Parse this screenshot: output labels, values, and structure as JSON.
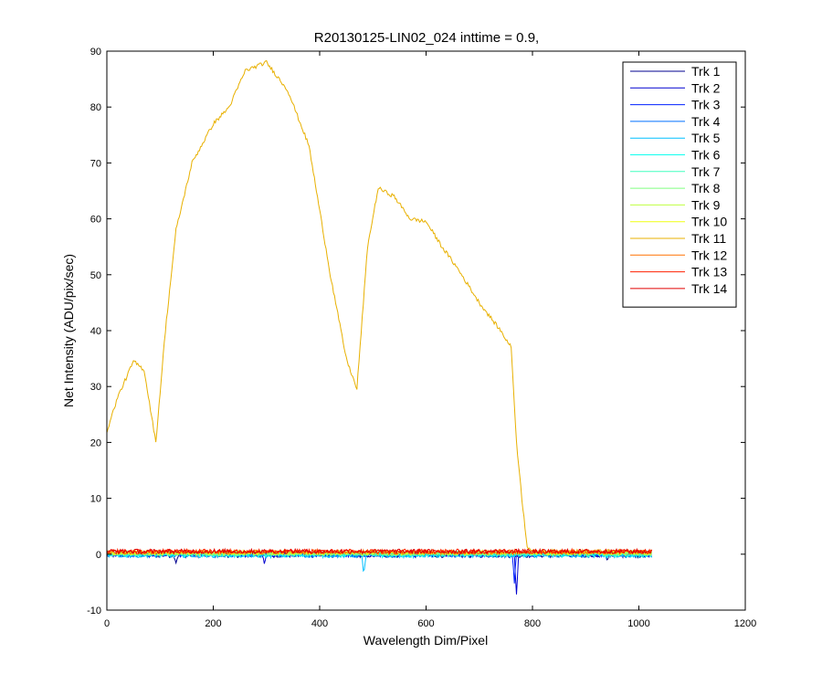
{
  "chart_data": {
    "type": "line",
    "title": "R20130125-LIN02_024 inttime = 0.9,",
    "xlabel": "Wavelength Dim/Pixel",
    "ylabel": "Net Intensity (ADU/pix/sec)",
    "xlim": [
      0,
      1200
    ],
    "ylim": [
      -10,
      90
    ],
    "xticks": [
      0,
      200,
      400,
      600,
      800,
      1000,
      1200
    ],
    "yticks": [
      -10,
      0,
      10,
      20,
      30,
      40,
      50,
      60,
      70,
      80,
      90
    ],
    "grid": false,
    "legend_position": "top-right",
    "series": [
      {
        "name": "Trk 1",
        "color": "#00008f",
        "x": [
          0,
          1024
        ],
        "y": [
          0,
          0
        ],
        "noise": 0.4,
        "offset": -0.2,
        "spikes": [
          [
            130,
            -1.2
          ],
          [
            940,
            -1.0
          ]
        ]
      },
      {
        "name": "Trk 2",
        "color": "#0000cf",
        "x": [
          0,
          1024
        ],
        "y": [
          0,
          0
        ],
        "noise": 0.4,
        "offset": -0.1,
        "spikes": [
          [
            770,
            -7.5
          ],
          [
            296,
            -1.8
          ]
        ]
      },
      {
        "name": "Trk 3",
        "color": "#0020ff",
        "x": [
          0,
          1024
        ],
        "y": [
          0,
          0
        ],
        "noise": 0.4,
        "offset": 0.0,
        "spikes": [
          [
            766,
            -5.0
          ]
        ]
      },
      {
        "name": "Trk 4",
        "color": "#0070ff",
        "x": [
          0,
          1024
        ],
        "y": [
          0,
          0
        ],
        "noise": 0.4,
        "offset": 0.0,
        "spikes": []
      },
      {
        "name": "Trk 5",
        "color": "#00bfff",
        "x": [
          0,
          1024
        ],
        "y": [
          0,
          0
        ],
        "noise": 0.4,
        "offset": -0.2,
        "spikes": [
          [
            483,
            -3.3
          ]
        ]
      },
      {
        "name": "Trk 6",
        "color": "#10ffef",
        "x": [
          0,
          1024
        ],
        "y": [
          0,
          0
        ],
        "noise": 0.4,
        "offset": -0.1,
        "spikes": []
      },
      {
        "name": "Trk 7",
        "color": "#40ffbf",
        "x": [
          0,
          1024
        ],
        "y": [
          0,
          0
        ],
        "noise": 0.4,
        "offset": 0.1,
        "spikes": []
      },
      {
        "name": "Trk 8",
        "color": "#80ff80",
        "x": [
          0,
          1024
        ],
        "y": [
          0,
          0
        ],
        "noise": 0.4,
        "offset": 0.2,
        "spikes": []
      },
      {
        "name": "Trk 9",
        "color": "#bfff40",
        "x": [
          0,
          1024
        ],
        "y": [
          0,
          0
        ],
        "noise": 0.4,
        "offset": 0.2,
        "spikes": []
      },
      {
        "name": "Trk 10",
        "color": "#efff10",
        "x": [
          0,
          1024
        ],
        "y": [
          0,
          0
        ],
        "noise": 0.4,
        "offset": 0.3,
        "spikes": []
      },
      {
        "name": "Trk 11",
        "color": "#e8b000",
        "x": [
          0,
          20,
          50,
          70,
          92,
          110,
          130,
          160,
          200,
          230,
          260,
          300,
          340,
          380,
          420,
          450,
          470,
          490,
          510,
          540,
          570,
          600,
          630,
          660,
          700,
          740,
          760,
          770,
          780,
          790,
          800,
          820,
          900,
          1024
        ],
        "y": [
          22,
          28,
          34.5,
          33,
          20,
          40,
          58,
          70,
          77,
          80,
          86.5,
          88,
          83,
          73,
          50,
          35,
          29.5,
          55,
          65.5,
          64,
          60,
          59.5,
          55,
          51,
          45,
          40,
          37,
          20,
          10,
          1.5,
          0.5,
          0.5,
          0.5,
          0.5
        ],
        "noise": 0.35,
        "offset": 0.0,
        "spikes": []
      },
      {
        "name": "Trk 12",
        "color": "#ff7000",
        "x": [
          0,
          1024
        ],
        "y": [
          0,
          0
        ],
        "noise": 0.4,
        "offset": 0.4,
        "spikes": []
      },
      {
        "name": "Trk 13",
        "color": "#ff2000",
        "x": [
          0,
          1024
        ],
        "y": [
          0,
          0
        ],
        "noise": 0.4,
        "offset": 0.5,
        "spikes": []
      },
      {
        "name": "Trk 14",
        "color": "#e00000",
        "x": [
          0,
          1024
        ],
        "y": [
          0,
          0
        ],
        "noise": 0.4,
        "offset": 0.5,
        "spikes": []
      }
    ]
  }
}
